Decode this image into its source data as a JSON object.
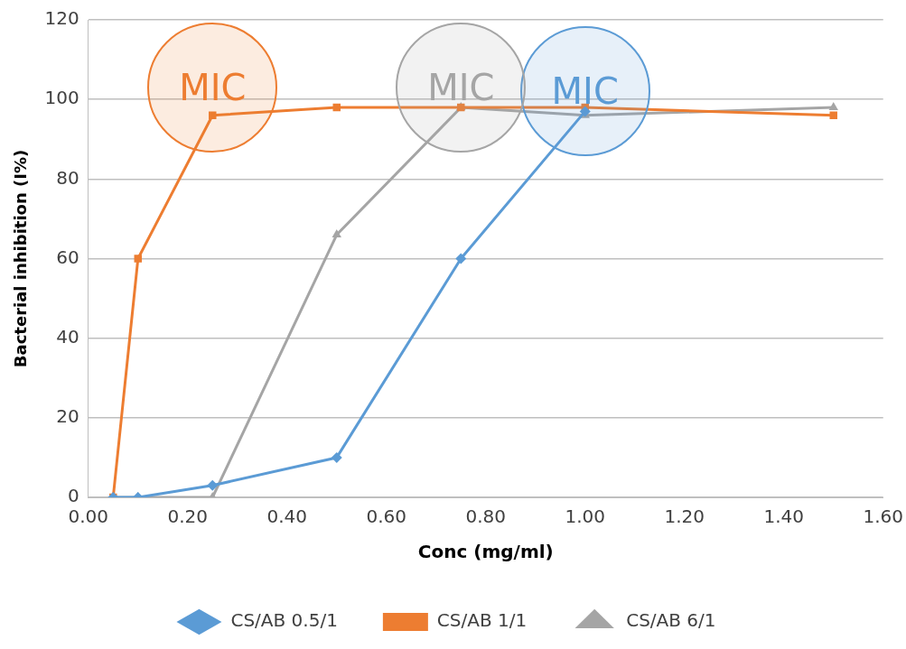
{
  "chart_data": {
    "type": "line",
    "xlabel": "Conc (mg/ml)",
    "ylabel": "Bacterial inhibition (I%)",
    "x": [
      0.05,
      0.1,
      0.25,
      0.5,
      0.75,
      1.0,
      1.5
    ],
    "series": [
      {
        "name": "CS/AB 0.5/1",
        "color": "#5b9bd5",
        "marker": "diamond",
        "values": [
          0,
          0,
          3,
          10,
          60,
          97,
          null
        ]
      },
      {
        "name": "CS/AB 1/1",
        "color": "#ed7d31",
        "marker": "square",
        "values": [
          0,
          60,
          96,
          98,
          98,
          98,
          96
        ]
      },
      {
        "name": "CS/AB 6/1",
        "color": "#a5a5a5",
        "marker": "triangle",
        "values": [
          0,
          0,
          0,
          66,
          98,
          96,
          98
        ]
      }
    ],
    "annotations": [
      "MIC",
      "MIC",
      "MIC"
    ],
    "xlim": [
      0,
      1.6
    ],
    "xticks": [
      {
        "value": 0,
        "label": "0.00"
      },
      {
        "value": 0.2,
        "label": "0.20"
      },
      {
        "value": 0.4,
        "label": "0.40"
      },
      {
        "value": 0.6,
        "label": "0.60"
      },
      {
        "value": 0.8,
        "label": "0.80"
      },
      {
        "value": 1.0,
        "label": "1.00"
      },
      {
        "value": 1.2,
        "label": "1.20"
      },
      {
        "value": 1.4,
        "label": "1.40"
      },
      {
        "value": 1.6,
        "label": "1.60"
      }
    ],
    "ylim": [
      0,
      120
    ],
    "yticks": [
      0,
      20,
      40,
      60,
      80,
      100,
      120
    ],
    "grid": "y",
    "legend": "bottom"
  }
}
